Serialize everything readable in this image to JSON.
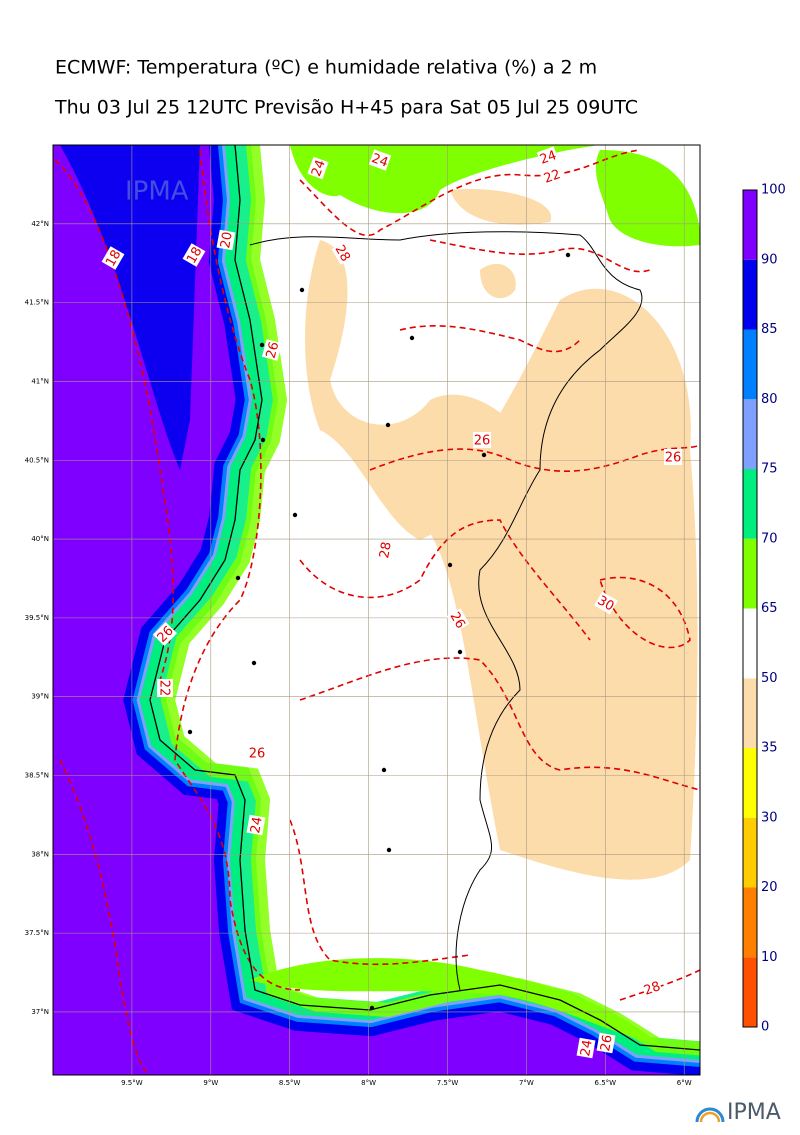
{
  "header": {
    "title": "ECMWF: Temperatura (ºC) e humidade relativa (%) a 2 m",
    "subtitle": "Thu 03 Jul 25 12UTC Previsão H+45 para Sat 05 Jul 25 09UTC"
  },
  "map": {
    "xlim": [
      -10,
      -5.9
    ],
    "ylim": [
      36.6,
      42.5
    ],
    "xticks": [
      {
        "value": -9.5,
        "label": "9.5°W"
      },
      {
        "value": -9,
        "label": "9°W"
      },
      {
        "value": -8.5,
        "label": "8.5°W"
      },
      {
        "value": -8,
        "label": "8°W"
      },
      {
        "value": -7.5,
        "label": "7.5°W"
      },
      {
        "value": -7,
        "label": "7°W"
      },
      {
        "value": -6.5,
        "label": "6.5°W"
      },
      {
        "value": -6,
        "label": "6°W"
      }
    ],
    "yticks": [
      {
        "value": 42,
        "label": "42°N"
      },
      {
        "value": 41.5,
        "label": "41.5°N"
      },
      {
        "value": 41,
        "label": "41°N"
      },
      {
        "value": 40.5,
        "label": "40.5°N"
      },
      {
        "value": 40,
        "label": "40°N"
      },
      {
        "value": 39.5,
        "label": "39.5°N"
      },
      {
        "value": 39,
        "label": "39°N"
      },
      {
        "value": 38.5,
        "label": "38.5°N"
      },
      {
        "value": 38,
        "label": "38°N"
      },
      {
        "value": 37.5,
        "label": "37.5°N"
      },
      {
        "value": 37,
        "label": "37°N"
      }
    ],
    "contour_labels": [
      18,
      18,
      20,
      24,
      24,
      22,
      24,
      26,
      26,
      26,
      28,
      26,
      28,
      30,
      26,
      22,
      26,
      24,
      28,
      24,
      26
    ]
  },
  "colorbar": {
    "levels": [
      0,
      10,
      20,
      30,
      35,
      50,
      65,
      70,
      75,
      80,
      85,
      90,
      100
    ],
    "colors": [
      "#ff5000",
      "#ff8000",
      "#ffcc00",
      "#ffff00",
      "#fddcab",
      "#ffffff",
      "#80ff00",
      "#00ee80",
      "#80a0ff",
      "#0080ff",
      "#0000ee",
      "#8000ff"
    ]
  },
  "logo": {
    "text": "IPMA"
  }
}
